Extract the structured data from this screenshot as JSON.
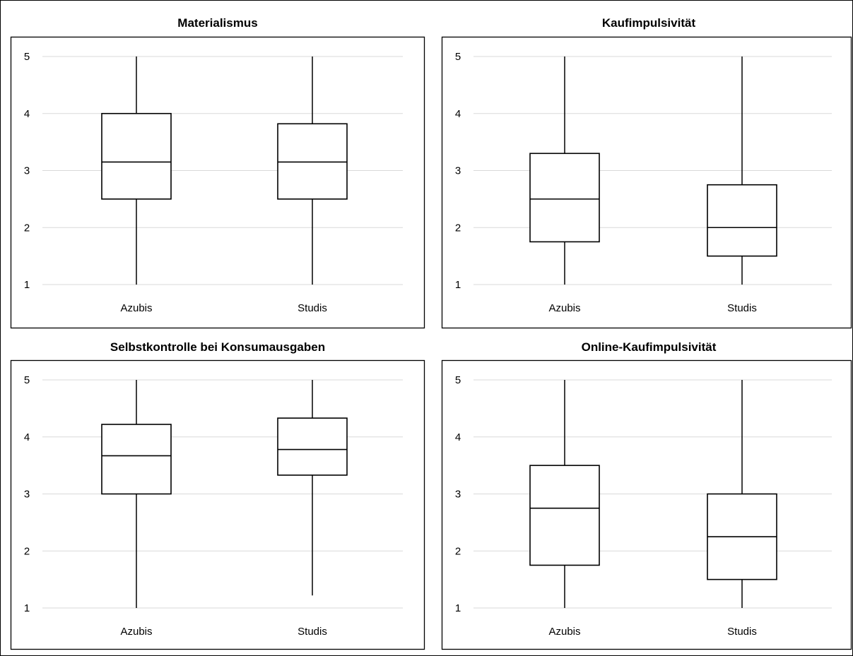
{
  "figure": {
    "chart_data": [
      {
        "type": "boxplot",
        "title": "Materialismus",
        "categories": [
          "Azubis",
          "Studis"
        ],
        "ylim": [
          1,
          5
        ],
        "yticks": [
          1,
          2,
          3,
          4,
          5
        ],
        "grid": true,
        "boxes": [
          {
            "name": "Azubis",
            "min": 1,
            "q1": 2.5,
            "median": 3.15,
            "q3": 4.0,
            "max": 5
          },
          {
            "name": "Studis",
            "min": 1,
            "q1": 2.5,
            "median": 3.15,
            "q3": 3.82,
            "max": 5
          }
        ]
      },
      {
        "type": "boxplot",
        "title": "Kaufimpulsivität",
        "categories": [
          "Azubis",
          "Studis"
        ],
        "ylim": [
          1,
          5
        ],
        "yticks": [
          1,
          2,
          3,
          4,
          5
        ],
        "grid": true,
        "boxes": [
          {
            "name": "Azubis",
            "min": 1,
            "q1": 1.75,
            "median": 2.5,
            "q3": 3.3,
            "max": 5
          },
          {
            "name": "Studis",
            "min": 1,
            "q1": 1.5,
            "median": 2.0,
            "q3": 2.75,
            "max": 5
          }
        ]
      },
      {
        "type": "boxplot",
        "title": "Selbstkontrolle bei Konsumausgaben",
        "categories": [
          "Azubis",
          "Studis"
        ],
        "ylim": [
          1,
          5
        ],
        "yticks": [
          1,
          2,
          3,
          4,
          5
        ],
        "grid": true,
        "boxes": [
          {
            "name": "Azubis",
            "min": 1,
            "q1": 3.0,
            "median": 3.67,
            "q3": 4.22,
            "max": 5
          },
          {
            "name": "Studis",
            "min": 1.22,
            "q1": 3.33,
            "median": 3.78,
            "q3": 4.33,
            "max": 5
          }
        ]
      },
      {
        "type": "boxplot",
        "title": "Online-Kaufimpulsivität",
        "categories": [
          "Azubis",
          "Studis"
        ],
        "ylim": [
          1,
          5
        ],
        "yticks": [
          1,
          2,
          3,
          4,
          5
        ],
        "grid": true,
        "boxes": [
          {
            "name": "Azubis",
            "min": 1,
            "q1": 1.75,
            "median": 2.75,
            "q3": 3.5,
            "max": 5
          },
          {
            "name": "Studis",
            "min": 1,
            "q1": 1.5,
            "median": 2.25,
            "q3": 3.0,
            "max": 5
          }
        ]
      }
    ],
    "colors": {
      "stroke": "#000000",
      "grid": "#d9d9d9",
      "box_fill": "#ffffff"
    }
  }
}
